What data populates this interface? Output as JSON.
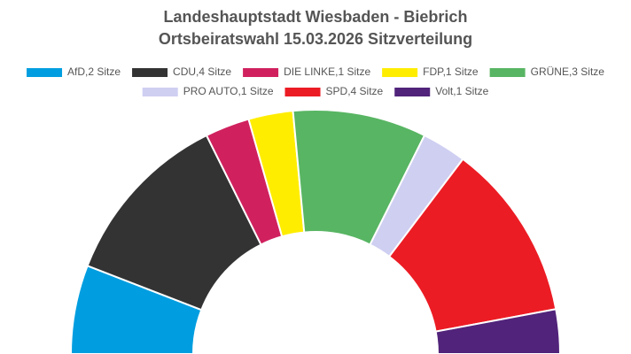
{
  "chart_data": {
    "type": "semicircle",
    "title": "Landeshauptstadt Wiesbaden - Biebrich",
    "subtitle": "Ortsbeiratswahl 15.03.2026 Sitzverteilung",
    "categories": [
      "AfD,2 Sitze",
      "CDU,4 Sitze",
      "DIE LINKE,1 Sitze",
      "FDP,1 Sitze",
      "GRÜNE,3 Sitze",
      "PRO AUTO,1 Sitze",
      "SPD,4 Sitze",
      "Volt,1 Sitze"
    ],
    "values": [
      2,
      4,
      1,
      1,
      3,
      1,
      4,
      1
    ],
    "colors": [
      "#009ee0",
      "#333333",
      "#d0215e",
      "#ffed00",
      "#58b563",
      "#cfcff2",
      "#ec1c24",
      "#51237a"
    ],
    "legend": "top"
  }
}
